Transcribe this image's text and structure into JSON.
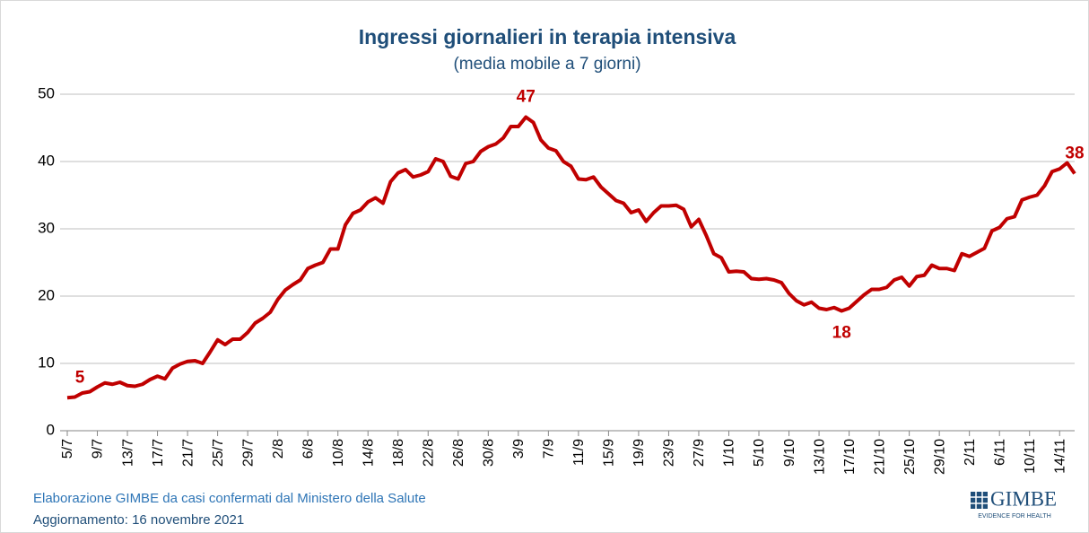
{
  "chart_data": {
    "type": "line",
    "title": "Ingressi giornalieri in terapia intensiva",
    "subtitle": "(media mobile a 7 giorni)",
    "categories": [
      "5/7",
      null,
      null,
      null,
      "9/7",
      null,
      null,
      null,
      "13/7",
      null,
      null,
      null,
      "17/7",
      null,
      null,
      null,
      "21/7",
      null,
      null,
      null,
      "25/7",
      null,
      null,
      null,
      "29/7",
      null,
      null,
      null,
      "2/8",
      null,
      null,
      null,
      "6/8",
      null,
      null,
      null,
      "10/8",
      null,
      null,
      null,
      "14/8",
      null,
      null,
      null,
      "18/8",
      null,
      null,
      null,
      "22/8",
      null,
      null,
      null,
      "26/8",
      null,
      null,
      null,
      "30/8",
      null,
      null,
      null,
      "3/9",
      null,
      null,
      null,
      "7/9",
      null,
      null,
      null,
      "11/9",
      null,
      null,
      null,
      "15/9",
      null,
      null,
      null,
      "19/9",
      null,
      null,
      null,
      "23/9",
      null,
      null,
      null,
      "27/9",
      null,
      null,
      null,
      "1/10",
      null,
      null,
      null,
      "5/10",
      null,
      null,
      null,
      "9/10",
      null,
      null,
      null,
      "13/10",
      null,
      null,
      null,
      "17/10",
      null,
      null,
      null,
      "21/10",
      null,
      null,
      null,
      "25/10",
      null,
      null,
      null,
      "29/10",
      null,
      null,
      null,
      "2/11",
      null,
      null,
      null,
      "6/11",
      null,
      null,
      null,
      "10/11",
      null,
      null,
      null,
      "14/11",
      null,
      null
    ],
    "series": [
      {
        "color": "#c00000",
        "values": [
          4.9,
          5.0,
          5.6,
          5.8,
          6.5,
          7.1,
          6.9,
          7.2,
          6.7,
          6.6,
          6.9,
          7.6,
          8.1,
          7.7,
          9.3,
          9.9,
          10.3,
          10.4,
          10.0,
          11.7,
          13.5,
          12.8,
          13.6,
          13.6,
          14.6,
          16.0,
          16.7,
          17.6,
          19.5,
          20.9,
          21.7,
          22.4,
          24.1,
          24.6,
          25.0,
          27.0,
          27.0,
          30.6,
          32.3,
          32.8,
          34.0,
          34.6,
          33.8,
          37.0,
          38.3,
          38.8,
          37.7,
          38.0,
          38.5,
          40.4,
          40.0,
          37.8,
          37.4,
          39.7,
          40.0,
          41.5,
          42.2,
          42.6,
          43.5,
          45.2,
          45.2,
          46.6,
          45.8,
          43.2,
          42.0,
          41.6,
          40.0,
          39.3,
          37.4,
          37.3,
          37.7,
          36.2,
          35.2,
          34.2,
          33.8,
          32.4,
          32.8,
          31.1,
          32.4,
          33.4,
          33.4,
          33.5,
          32.9,
          30.3,
          31.4,
          29.0,
          26.3,
          25.7,
          23.6,
          23.7,
          23.6,
          22.6,
          22.5,
          22.6,
          22.4,
          22.0,
          20.4,
          19.3,
          18.7,
          19.1,
          18.2,
          18.0,
          18.3,
          17.8,
          18.2,
          19.2,
          20.2,
          21.0,
          21.0,
          21.3,
          22.4,
          22.8,
          21.5,
          22.9,
          23.1,
          24.6,
          24.1,
          24.1,
          23.8,
          26.3,
          25.9,
          26.5,
          27.1,
          29.7,
          30.2,
          31.5,
          31.8,
          34.3,
          34.7,
          35.0,
          36.4,
          38.5,
          38.9,
          39.8,
          38.2
        ],
        "value_labels": [
          "5",
          null,
          null,
          null,
          null,
          null,
          null,
          null,
          null,
          null,
          null,
          null,
          null,
          null,
          null,
          null,
          null,
          null,
          null,
          null,
          null,
          null,
          null,
          null,
          null,
          null,
          null,
          null,
          null,
          null,
          null,
          null,
          null,
          null,
          null,
          null,
          null,
          null,
          null,
          null,
          null,
          null,
          null,
          null,
          null,
          null,
          null,
          null,
          null,
          null,
          null,
          null,
          null,
          null,
          null,
          null,
          null,
          null,
          null,
          null,
          null,
          "47",
          null,
          null,
          null,
          null,
          null,
          null,
          null,
          null,
          null,
          null,
          null,
          null,
          null,
          null,
          null,
          null,
          null,
          null,
          null,
          null,
          null,
          null,
          null,
          null,
          null,
          null,
          null,
          null,
          null,
          null,
          null,
          null,
          null,
          null,
          null,
          null,
          null,
          null,
          null,
          null,
          null,
          "18",
          null,
          null,
          null,
          null,
          null,
          null,
          null,
          null,
          null,
          null,
          null,
          null,
          null,
          null,
          null,
          null,
          null,
          null,
          null,
          null,
          null,
          null,
          null,
          null,
          null,
          null,
          null,
          null,
          null,
          null,
          "38"
        ]
      }
    ],
    "ylim": [
      0,
      50
    ],
    "yticks": [
      0,
      10,
      20,
      30,
      40,
      50
    ],
    "grid": true
  },
  "footer": {
    "source": "Elaborazione GIMBE da casi confermati dal Ministero della Salute",
    "updated": "Aggiornamento: 16 novembre 2021",
    "logo": "GIMBE",
    "logo_tagline": "EVIDENCE FOR HEALTH"
  }
}
